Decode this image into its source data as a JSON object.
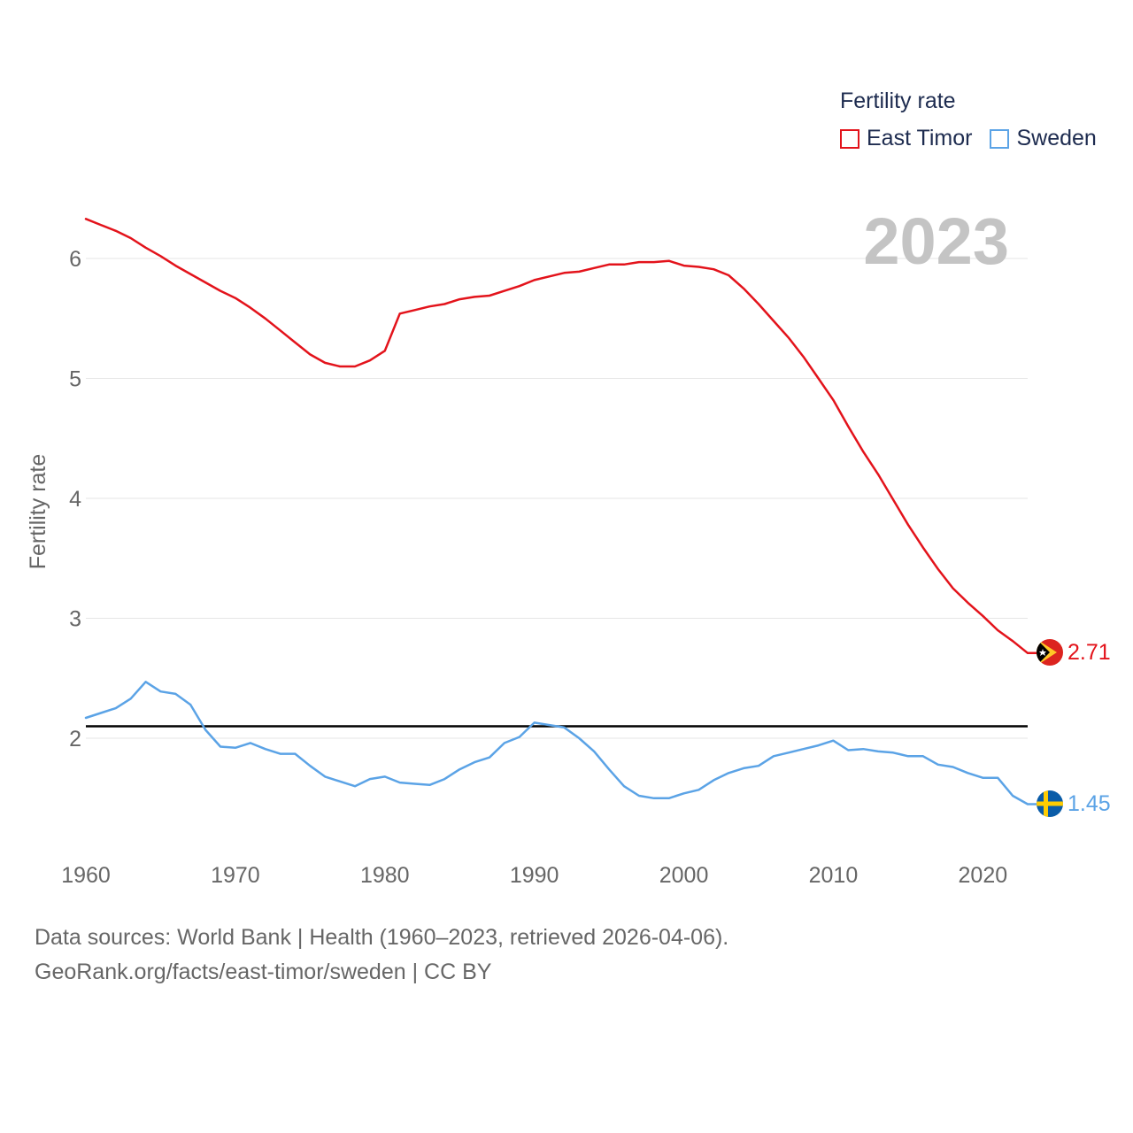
{
  "legend": {
    "title": "Fertility rate",
    "items": [
      {
        "name": "East Timor",
        "color": "#e3131b"
      },
      {
        "name": "Sweden",
        "color": "#5ba3e6"
      }
    ]
  },
  "year_label": "2023",
  "footer": {
    "line1": "Data sources: World Bank | Health (1960–2023, retrieved 2026-04-06).",
    "line2": "GeoRank.org/facts/east-timor/sweden | CC BY"
  },
  "colors": {
    "east_timor": "#e3131b",
    "sweden": "#5ba3e6",
    "reference": "#000000",
    "grid": "#e6e6e6",
    "axis_text": "#666666",
    "year_watermark": "#c4c4c4"
  },
  "chart_data": {
    "type": "line",
    "title": "",
    "xlabel": "",
    "ylabel": "Fertility rate",
    "xlim": [
      1960,
      2023
    ],
    "ylim": [
      1.4,
      6.3
    ],
    "x_ticks": [
      1960,
      1970,
      1980,
      1990,
      2000,
      2010,
      2020
    ],
    "y_ticks": [
      2,
      3,
      4,
      5,
      6
    ],
    "reference_line": 2.1,
    "x": [
      1960,
      1961,
      1962,
      1963,
      1964,
      1965,
      1966,
      1967,
      1968,
      1969,
      1970,
      1971,
      1972,
      1973,
      1974,
      1975,
      1976,
      1977,
      1978,
      1979,
      1980,
      1981,
      1982,
      1983,
      1984,
      1985,
      1986,
      1987,
      1988,
      1989,
      1990,
      1991,
      1992,
      1993,
      1994,
      1995,
      1996,
      1997,
      1998,
      1999,
      2000,
      2001,
      2002,
      2003,
      2004,
      2005,
      2006,
      2007,
      2008,
      2009,
      2010,
      2011,
      2012,
      2013,
      2014,
      2015,
      2016,
      2017,
      2018,
      2019,
      2020,
      2021,
      2022,
      2023
    ],
    "series": [
      {
        "name": "East Timor",
        "end_label": "2.71",
        "values": [
          6.33,
          6.28,
          6.23,
          6.17,
          6.09,
          6.02,
          5.94,
          5.87,
          5.8,
          5.73,
          5.67,
          5.59,
          5.5,
          5.4,
          5.3,
          5.2,
          5.13,
          5.1,
          5.1,
          5.15,
          5.23,
          5.54,
          5.57,
          5.6,
          5.62,
          5.66,
          5.68,
          5.69,
          5.73,
          5.77,
          5.82,
          5.85,
          5.88,
          5.89,
          5.92,
          5.95,
          5.95,
          5.97,
          5.97,
          5.98,
          5.94,
          5.93,
          5.91,
          5.86,
          5.75,
          5.62,
          5.48,
          5.34,
          5.18,
          5.0,
          4.82,
          4.6,
          4.39,
          4.2,
          3.99,
          3.78,
          3.59,
          3.41,
          3.25,
          3.13,
          3.02,
          2.9,
          2.81,
          2.71
        ]
      },
      {
        "name": "Sweden",
        "end_label": "1.45",
        "values": [
          2.17,
          2.21,
          2.25,
          2.33,
          2.47,
          2.39,
          2.37,
          2.28,
          2.07,
          1.93,
          1.92,
          1.96,
          1.91,
          1.87,
          1.87,
          1.77,
          1.68,
          1.64,
          1.6,
          1.66,
          1.68,
          1.63,
          1.62,
          1.61,
          1.66,
          1.74,
          1.8,
          1.84,
          1.96,
          2.01,
          2.13,
          2.11,
          2.09,
          2.0,
          1.89,
          1.74,
          1.6,
          1.52,
          1.5,
          1.5,
          1.54,
          1.57,
          1.65,
          1.71,
          1.75,
          1.77,
          1.85,
          1.88,
          1.91,
          1.94,
          1.98,
          1.9,
          1.91,
          1.89,
          1.88,
          1.85,
          1.85,
          1.78,
          1.76,
          1.71,
          1.67,
          1.67,
          1.52,
          1.45
        ]
      }
    ]
  }
}
